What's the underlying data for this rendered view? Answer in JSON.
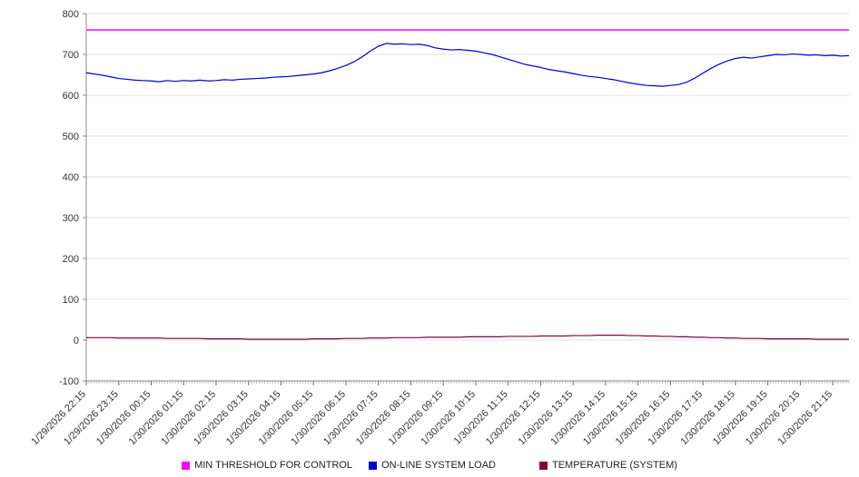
{
  "chart_data": {
    "type": "line",
    "title": "",
    "xlabel": "",
    "ylabel": "",
    "ylim": [
      -100,
      800
    ],
    "ytick_step": 100,
    "grid": true,
    "legend_position": "bottom",
    "x_labels": [
      "1/29/2026 22:15",
      "1/29/2026 23:15",
      "1/30/2026 00:15",
      "1/30/2026 01:15",
      "1/30/2026 02:15",
      "1/30/2026 03:15",
      "1/30/2026 04:15",
      "1/30/2026 05:15",
      "1/30/2026 06:15",
      "1/30/2026 07:15",
      "1/30/2026 08:15",
      "1/30/2026 09:15",
      "1/30/2026 10:15",
      "1/30/2026 11:15",
      "1/30/2026 12:15",
      "1/30/2026 13:15",
      "1/30/2026 14:15",
      "1/30/2026 15:15",
      "1/30/2026 16:15",
      "1/30/2026 17:15",
      "1/30/2026 18:15",
      "1/30/2026 19:15",
      "1/30/2026 20:15",
      "1/30/2026 21:15"
    ],
    "points_per_label_interval": 4,
    "series": [
      {
        "name": "MIN THRESHOLD FOR CONTROL",
        "color": "#ff00ff",
        "constant": 760
      },
      {
        "name": "ON-LINE SYSTEM LOAD",
        "color": "#0000cc",
        "values": [
          655,
          652,
          649,
          645,
          641,
          639,
          637,
          636,
          635,
          633,
          636,
          634,
          636,
          635,
          637,
          635,
          636,
          638,
          637,
          639,
          640,
          641,
          642,
          644,
          645,
          646,
          648,
          650,
          652,
          655,
          660,
          666,
          673,
          682,
          694,
          708,
          720,
          727,
          725,
          726,
          724,
          725,
          722,
          716,
          713,
          711,
          712,
          710,
          708,
          704,
          700,
          694,
          688,
          682,
          676,
          672,
          668,
          663,
          660,
          657,
          653,
          649,
          646,
          644,
          641,
          638,
          634,
          630,
          627,
          624,
          623,
          622,
          624,
          626,
          632,
          642,
          654,
          666,
          676,
          684,
          690,
          693,
          691,
          694,
          697,
          700,
          699,
          701,
          700,
          698,
          699,
          697,
          698,
          696,
          697
        ]
      },
      {
        "name": "TEMPERATURE (SYSTEM)",
        "color": "#800040",
        "values": [
          6,
          6,
          6,
          6,
          5,
          5,
          5,
          5,
          5,
          5,
          4,
          4,
          4,
          4,
          4,
          3,
          3,
          3,
          3,
          3,
          2,
          2,
          2,
          2,
          2,
          2,
          2,
          2,
          3,
          3,
          3,
          3,
          4,
          4,
          4,
          5,
          5,
          5,
          6,
          6,
          6,
          6,
          7,
          7,
          7,
          7,
          7,
          8,
          8,
          8,
          8,
          8,
          9,
          9,
          9,
          9,
          10,
          10,
          10,
          10,
          11,
          11,
          11,
          12,
          12,
          12,
          12,
          11,
          11,
          10,
          10,
          9,
          9,
          8,
          8,
          7,
          7,
          6,
          6,
          5,
          5,
          4,
          4,
          4,
          3,
          3,
          3,
          3,
          3,
          3,
          2,
          2,
          2,
          2,
          2
        ]
      }
    ]
  }
}
